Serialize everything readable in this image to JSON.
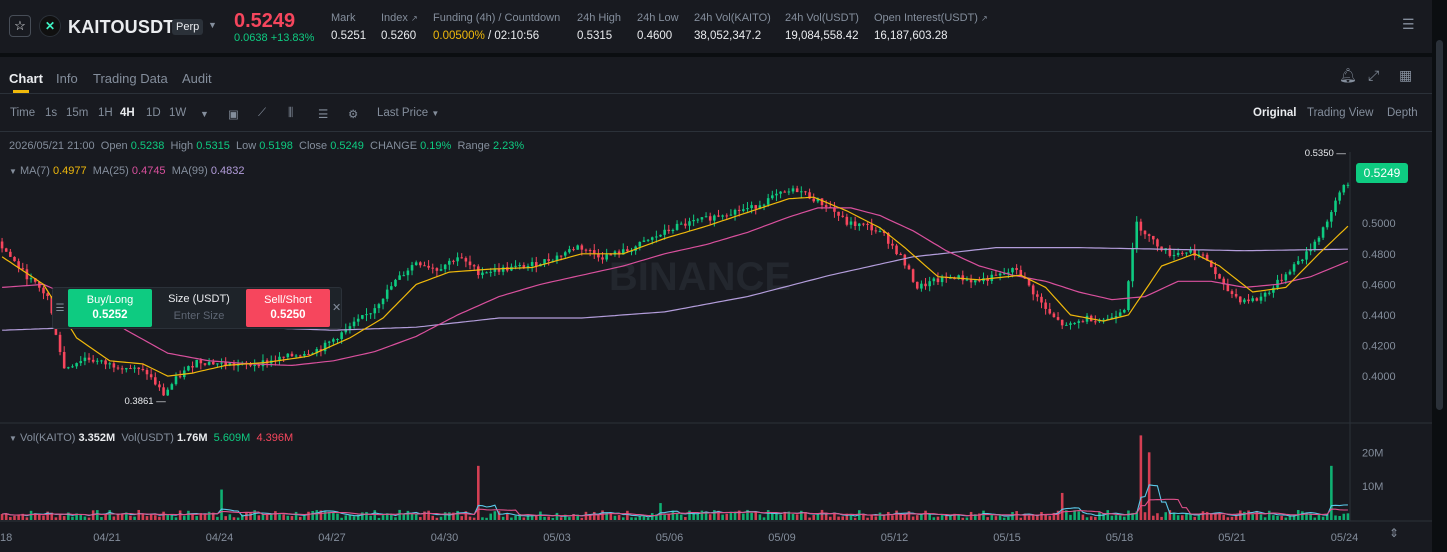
{
  "ticker": {
    "symbol": "KAITOUSDT",
    "contract_type": "Perp",
    "price": "0.5249",
    "change": "0.0638 +13.83%",
    "stats": [
      {
        "label": "Mark",
        "value": "0.5251"
      },
      {
        "label": "Index",
        "value": "0.5260"
      },
      {
        "label": "Funding (4h) / Countdown",
        "value_rate": "0.00500%",
        "value_countdown": "/ 02:10:56"
      },
      {
        "label": "24h High",
        "value": "0.5315"
      },
      {
        "label": "24h Low",
        "value": "0.4600"
      },
      {
        "label": "24h Vol(KAITO)",
        "value": "38,052,347.2"
      },
      {
        "label": "24h Vol(USDT)",
        "value": "19,084,558.42"
      },
      {
        "label": "Open Interest(USDT)",
        "value": "16,187,603.28"
      }
    ]
  },
  "tabs": [
    "Chart",
    "Info",
    "Trading Data",
    "Audit"
  ],
  "toolbar": {
    "intervals": [
      "Time",
      "1s",
      "15m",
      "1H",
      "4H",
      "1D",
      "1W"
    ],
    "active_interval": "4H",
    "price_type": "Last Price",
    "views": [
      "Original",
      "Trading View",
      "Depth"
    ]
  },
  "ohlc_legend": {
    "date": "2026/05/21 21:00",
    "open_label": "Open",
    "open": "0.5238",
    "high_label": "High",
    "high": "0.5315",
    "low_label": "Low",
    "low": "0.5198",
    "close_label": "Close",
    "close": "0.5249",
    "change_label": "CHANGE",
    "change": "0.19%",
    "range_label": "Range",
    "range": "2.23%"
  },
  "ma_legend": {
    "ma7_label": "MA(7)",
    "ma7": "0.4977",
    "ma25_label": "MA(25)",
    "ma25": "0.4745",
    "ma99_label": "MA(99)",
    "ma99": "0.4832"
  },
  "vol_legend": {
    "label": "Vol(KAITO)",
    "value": "3.352M",
    "usdt_label": "Vol(USDT)",
    "usdt_value": "1.76M",
    "ma5": "5.609M",
    "ma10": "4.396M"
  },
  "trade_widget": {
    "buy_label": "Buy/Long",
    "buy_price": "0.5252",
    "size_label": "Size (USDT)",
    "size_placeholder": "Enter Size",
    "sell_label": "Sell/Short",
    "sell_price": "0.5250"
  },
  "current_price_tag": "0.5249",
  "watermark": "BINANCE",
  "colors": {
    "up": "#0ecb81",
    "down": "#f6465d",
    "ma7": "#f0b90b",
    "ma25": "#d9509d",
    "ma99": "#b39ddb",
    "accent": "#f0b90b"
  },
  "chart_data": {
    "type": "candlestick",
    "price_axis": [
      "0.5000",
      "0.4800",
      "0.4600",
      "0.4400",
      "0.4200",
      "0.4000"
    ],
    "volume_axis": [
      "20M",
      "10M"
    ],
    "x_labels": [
      "18",
      "04/21",
      "04/24",
      "04/27",
      "04/30",
      "05/03",
      "05/06",
      "05/09",
      "05/12",
      "05/15",
      "05/18",
      "05/21",
      "05/24"
    ],
    "ylim": [
      0.37,
      0.54
    ],
    "annotations": [
      {
        "text": "0.5350",
        "kind": "high"
      },
      {
        "text": "0.3861",
        "kind": "low"
      }
    ],
    "price_path": [
      [
        0,
        0.488
      ],
      [
        6,
        0.468
      ],
      [
        12,
        0.452
      ],
      [
        16,
        0.405
      ],
      [
        21,
        0.412
      ],
      [
        26,
        0.408
      ],
      [
        31,
        0.406
      ],
      [
        36,
        0.402
      ],
      [
        40,
        0.388
      ],
      [
        43,
        0.398
      ],
      [
        48,
        0.41
      ],
      [
        54,
        0.408
      ],
      [
        60,
        0.407
      ],
      [
        66,
        0.41
      ],
      [
        72,
        0.414
      ],
      [
        78,
        0.418
      ],
      [
        84,
        0.43
      ],
      [
        90,
        0.442
      ],
      [
        96,
        0.462
      ],
      [
        101,
        0.475
      ],
      [
        106,
        0.47
      ],
      [
        111,
        0.478
      ],
      [
        116,
        0.468
      ],
      [
        122,
        0.47
      ],
      [
        128,
        0.472
      ],
      [
        134,
        0.477
      ],
      [
        140,
        0.485
      ],
      [
        146,
        0.478
      ],
      [
        152,
        0.482
      ],
      [
        158,
        0.49
      ],
      [
        164,
        0.498
      ],
      [
        170,
        0.502
      ],
      [
        176,
        0.507
      ],
      [
        182,
        0.51
      ],
      [
        188,
        0.518
      ],
      [
        193,
        0.522
      ],
      [
        197,
        0.516
      ],
      [
        201,
        0.51
      ],
      [
        205,
        0.5
      ],
      [
        210,
        0.498
      ],
      [
        214,
        0.492
      ],
      [
        218,
        0.478
      ],
      [
        222,
        0.458
      ],
      [
        226,
        0.462
      ],
      [
        231,
        0.465
      ],
      [
        236,
        0.462
      ],
      [
        241,
        0.465
      ],
      [
        246,
        0.47
      ],
      [
        250,
        0.455
      ],
      [
        254,
        0.44
      ],
      [
        258,
        0.432
      ],
      [
        263,
        0.438
      ],
      [
        268,
        0.437
      ],
      [
        272,
        0.445
      ],
      [
        275,
        0.5
      ],
      [
        279,
        0.488
      ],
      [
        283,
        0.48
      ],
      [
        288,
        0.482
      ],
      [
        292,
        0.476
      ],
      [
        296,
        0.458
      ],
      [
        300,
        0.45
      ],
      [
        304,
        0.45
      ],
      [
        308,
        0.458
      ],
      [
        312,
        0.47
      ],
      [
        316,
        0.48
      ],
      [
        319,
        0.492
      ],
      [
        322,
        0.507
      ],
      [
        325,
        0.525
      ]
    ],
    "ma7_path": [
      [
        0,
        0.478
      ],
      [
        10,
        0.46
      ],
      [
        18,
        0.425
      ],
      [
        26,
        0.41
      ],
      [
        34,
        0.408
      ],
      [
        40,
        0.4
      ],
      [
        46,
        0.402
      ],
      [
        54,
        0.407
      ],
      [
        64,
        0.409
      ],
      [
        74,
        0.413
      ],
      [
        84,
        0.425
      ],
      [
        92,
        0.438
      ],
      [
        100,
        0.46
      ],
      [
        108,
        0.468
      ],
      [
        118,
        0.47
      ],
      [
        128,
        0.471
      ],
      [
        140,
        0.48
      ],
      [
        150,
        0.48
      ],
      [
        160,
        0.49
      ],
      [
        170,
        0.498
      ],
      [
        180,
        0.507
      ],
      [
        190,
        0.516
      ],
      [
        196,
        0.517
      ],
      [
        204,
        0.508
      ],
      [
        212,
        0.497
      ],
      [
        218,
        0.484
      ],
      [
        226,
        0.465
      ],
      [
        236,
        0.463
      ],
      [
        246,
        0.466
      ],
      [
        252,
        0.458
      ],
      [
        258,
        0.44
      ],
      [
        266,
        0.436
      ],
      [
        272,
        0.44
      ],
      [
        280,
        0.472
      ],
      [
        288,
        0.48
      ],
      [
        294,
        0.472
      ],
      [
        302,
        0.455
      ],
      [
        310,
        0.458
      ],
      [
        318,
        0.48
      ],
      [
        325,
        0.498
      ]
    ],
    "ma25_path": [
      [
        0,
        0.458
      ],
      [
        10,
        0.46
      ],
      [
        20,
        0.448
      ],
      [
        30,
        0.43
      ],
      [
        40,
        0.415
      ],
      [
        50,
        0.41
      ],
      [
        60,
        0.408
      ],
      [
        70,
        0.407
      ],
      [
        80,
        0.41
      ],
      [
        90,
        0.416
      ],
      [
        100,
        0.426
      ],
      [
        110,
        0.44
      ],
      [
        120,
        0.452
      ],
      [
        130,
        0.46
      ],
      [
        140,
        0.466
      ],
      [
        150,
        0.472
      ],
      [
        160,
        0.48
      ],
      [
        170,
        0.486
      ],
      [
        180,
        0.494
      ],
      [
        190,
        0.504
      ],
      [
        197,
        0.51
      ],
      [
        205,
        0.51
      ],
      [
        212,
        0.505
      ],
      [
        220,
        0.495
      ],
      [
        228,
        0.482
      ],
      [
        236,
        0.472
      ],
      [
        244,
        0.466
      ],
      [
        252,
        0.462
      ],
      [
        260,
        0.455
      ],
      [
        268,
        0.45
      ],
      [
        276,
        0.452
      ],
      [
        284,
        0.462
      ],
      [
        292,
        0.462
      ],
      [
        300,
        0.458
      ],
      [
        308,
        0.46
      ],
      [
        316,
        0.465
      ],
      [
        325,
        0.475
      ]
    ],
    "ma99_path": [
      [
        0,
        0.43
      ],
      [
        20,
        0.432
      ],
      [
        40,
        0.433
      ],
      [
        60,
        0.432
      ],
      [
        80,
        0.43
      ],
      [
        100,
        0.432
      ],
      [
        120,
        0.438
      ],
      [
        140,
        0.438
      ],
      [
        160,
        0.442
      ],
      [
        180,
        0.452
      ],
      [
        200,
        0.466
      ],
      [
        220,
        0.478
      ],
      [
        240,
        0.484
      ],
      [
        260,
        0.484
      ],
      [
        280,
        0.483
      ],
      [
        300,
        0.482
      ],
      [
        325,
        0.483
      ]
    ],
    "volume_spikes_M": [
      {
        "x": 53,
        "v": 9
      },
      {
        "x": 115,
        "v": 16
      },
      {
        "x": 159,
        "v": 5
      },
      {
        "x": 256,
        "v": 8
      },
      {
        "x": 275,
        "v": 25
      },
      {
        "x": 277,
        "v": 20
      },
      {
        "x": 321,
        "v": 16
      }
    ],
    "volume_max_M": 26
  }
}
